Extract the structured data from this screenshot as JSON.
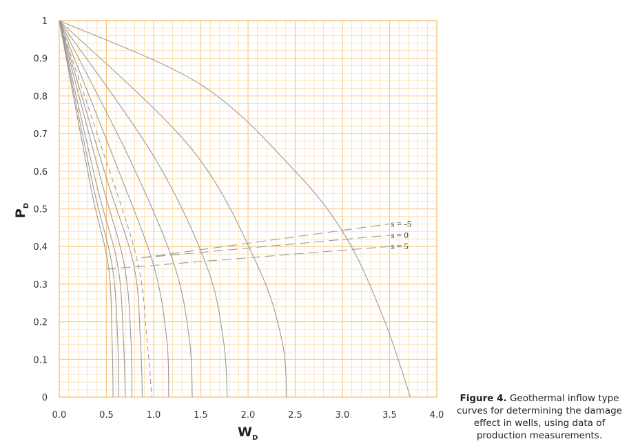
{
  "chart_data": {
    "type": "line",
    "title": "",
    "xlabel": "W",
    "xlabel_sub": "D",
    "ylabel": "P",
    "ylabel_sub": "D",
    "xlim": [
      0,
      4
    ],
    "ylim": [
      0,
      1
    ],
    "x_ticks": [
      "0.0",
      "0.5",
      "1.0",
      "1.5",
      "2.0",
      "2.5",
      "3.0",
      "3.5",
      "4.0"
    ],
    "y_ticks": [
      "0",
      "0.1",
      "0.2",
      "0.3",
      "0.4",
      "0.5",
      "0.6",
      "0.7",
      "0.8",
      "0.9",
      "1"
    ],
    "grid": true,
    "grid_color": "#f8c87a",
    "curve_color": "#999999",
    "series": [
      {
        "style": "solid",
        "points": [
          [
            0,
            1
          ],
          [
            0.34,
            0.55
          ],
          [
            0.52,
            0.35
          ],
          [
            0.56,
            0.15
          ],
          [
            0.57,
            0
          ]
        ]
      },
      {
        "style": "solid",
        "points": [
          [
            0,
            1
          ],
          [
            0.36,
            0.56
          ],
          [
            0.56,
            0.35
          ],
          [
            0.62,
            0.15
          ],
          [
            0.63,
            0
          ]
        ]
      },
      {
        "style": "solid",
        "points": [
          [
            0,
            1
          ],
          [
            0.39,
            0.57
          ],
          [
            0.62,
            0.35
          ],
          [
            0.68,
            0.15
          ],
          [
            0.7,
            0
          ]
        ]
      },
      {
        "style": "solid",
        "points": [
          [
            0,
            1
          ],
          [
            0.44,
            0.58
          ],
          [
            0.69,
            0.35
          ],
          [
            0.76,
            0.15
          ],
          [
            0.77,
            0
          ]
        ]
      },
      {
        "style": "solid",
        "points": [
          [
            0,
            1
          ],
          [
            0.49,
            0.59
          ],
          [
            0.79,
            0.35
          ],
          [
            0.86,
            0.15
          ],
          [
            0.88,
            0
          ]
        ]
      },
      {
        "style": "dashed",
        "points": [
          [
            0,
            1
          ],
          [
            0.4,
            0.7
          ],
          [
            0.82,
            0.37
          ],
          [
            0.93,
            0.15
          ],
          [
            0.98,
            0
          ]
        ]
      },
      {
        "style": "solid",
        "points": [
          [
            0,
            1
          ],
          [
            0.6,
            0.62
          ],
          [
            1.0,
            0.35
          ],
          [
            1.14,
            0.15
          ],
          [
            1.16,
            0
          ]
        ]
      },
      {
        "style": "solid",
        "points": [
          [
            0,
            1
          ],
          [
            0.75,
            0.63
          ],
          [
            1.22,
            0.35
          ],
          [
            1.38,
            0.15
          ],
          [
            1.41,
            0
          ]
        ]
      },
      {
        "style": "solid",
        "points": [
          [
            0,
            1
          ],
          [
            1.0,
            0.64
          ],
          [
            1.56,
            0.35
          ],
          [
            1.74,
            0.15
          ],
          [
            1.78,
            0
          ]
        ]
      },
      {
        "style": "solid",
        "points": [
          [
            0,
            1
          ],
          [
            1.4,
            0.66
          ],
          [
            2.1,
            0.35
          ],
          [
            2.36,
            0.15
          ],
          [
            2.41,
            0
          ]
        ]
      },
      {
        "style": "solid",
        "points": [
          [
            0,
            1
          ],
          [
            1.5,
            0.83
          ],
          [
            2.5,
            0.6
          ],
          [
            3.05,
            0.42
          ],
          [
            3.45,
            0.2
          ],
          [
            3.72,
            0
          ]
        ]
      }
    ],
    "s_lines": [
      {
        "label": "s = -5",
        "points": [
          [
            0.87,
            0.37
          ],
          [
            3.5,
            0.46
          ]
        ]
      },
      {
        "label": "s = 0",
        "points": [
          [
            0.87,
            0.37
          ],
          [
            3.5,
            0.43
          ]
        ]
      },
      {
        "label": "s = 5",
        "points": [
          [
            0.5,
            0.34
          ],
          [
            3.5,
            0.4
          ]
        ]
      }
    ]
  },
  "caption": {
    "label": "Figure 4.",
    "text": "Geothermal inflow type curves for determining the damage effect in wells, using data of production measurements."
  }
}
